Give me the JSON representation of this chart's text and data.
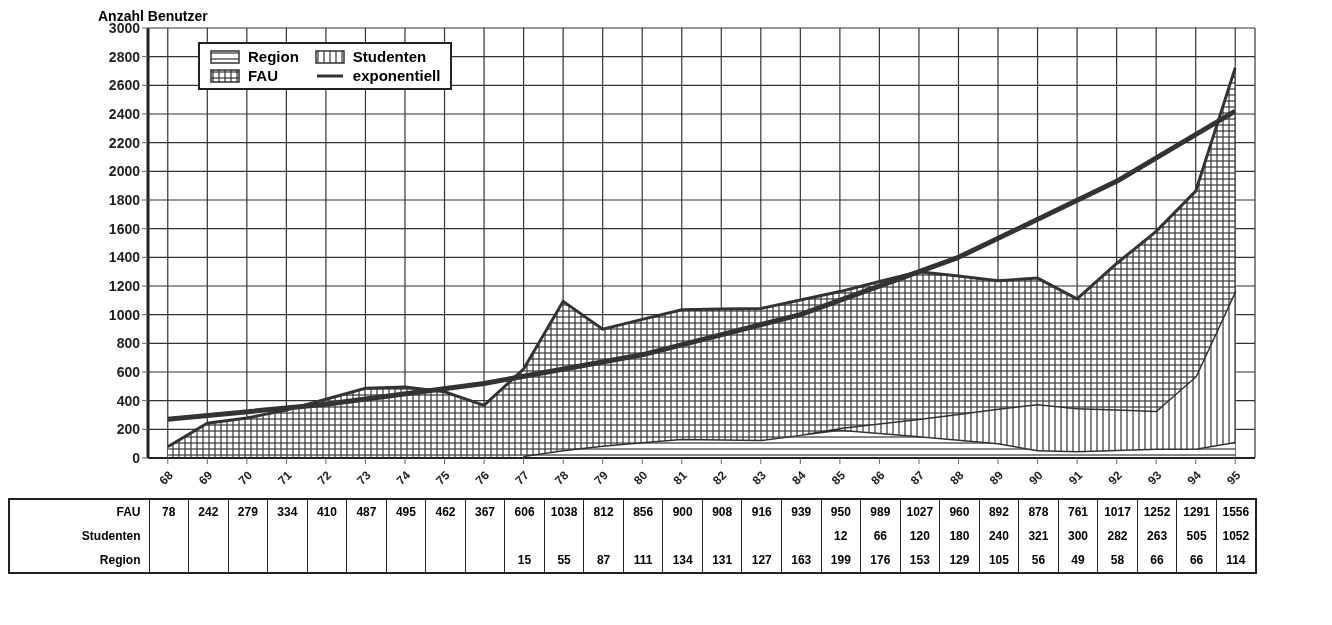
{
  "chart_data": {
    "type": "area",
    "ylabel": "Anzahl Benutzer",
    "categories": [
      "68",
      "69",
      "70",
      "71",
      "72",
      "73",
      "74",
      "75",
      "76",
      "77",
      "78",
      "79",
      "80",
      "81",
      "82",
      "83",
      "84",
      "85",
      "86",
      "87",
      "88",
      "89",
      "90",
      "91",
      "92",
      "93",
      "94",
      "95"
    ],
    "stacked": true,
    "grid": true,
    "legend": "top left",
    "ylim": [
      0,
      3000
    ],
    "yticks": [
      0,
      200,
      400,
      600,
      800,
      1000,
      1200,
      1400,
      1600,
      1800,
      2000,
      2200,
      2400,
      2600,
      2800,
      3000
    ],
    "series": [
      {
        "name": "Region",
        "color": "#333333",
        "values": [
          null,
          null,
          null,
          null,
          null,
          null,
          null,
          null,
          null,
          15,
          55,
          87,
          111,
          134,
          131,
          127,
          163,
          199,
          176,
          153,
          129,
          105,
          56,
          49,
          58,
          66,
          66,
          114
        ],
        "value_labels": [
          null,
          null,
          null,
          null,
          null,
          null,
          null,
          null,
          null,
          "15",
          "55",
          "87",
          "111",
          "134",
          "131",
          "127",
          "163",
          "199",
          "176",
          "153",
          "129",
          "105",
          "56",
          "49",
          "58",
          "66",
          "66",
          "114"
        ]
      },
      {
        "name": "Studenten",
        "color": "#333333",
        "values": [
          null,
          null,
          null,
          null,
          null,
          null,
          null,
          null,
          null,
          null,
          null,
          null,
          null,
          null,
          null,
          null,
          null,
          12,
          66,
          120,
          180,
          240,
          321,
          300,
          282,
          263,
          505,
          1052
        ],
        "value_labels": [
          null,
          null,
          null,
          null,
          null,
          null,
          null,
          null,
          null,
          null,
          null,
          null,
          null,
          null,
          null,
          null,
          null,
          "12",
          "66",
          "120",
          "180",
          "240",
          "321",
          "300",
          "282",
          "263",
          "505",
          "1052"
        ]
      },
      {
        "name": "FAU",
        "color": "#333333",
        "values": [
          78,
          242,
          279,
          334,
          410,
          487,
          495,
          462,
          367,
          606,
          1038,
          812,
          856,
          900,
          908,
          916,
          939,
          950,
          989,
          1027,
          960,
          892,
          878,
          761,
          1017,
          1252,
          1291,
          1556
        ],
        "value_labels": [
          "78",
          "242",
          "279",
          "334",
          "410",
          "487",
          "495",
          "462",
          "367",
          "606",
          "1038",
          "812",
          "856",
          "900",
          "908",
          "916",
          "939",
          "950",
          "989",
          "1027",
          "960",
          "892",
          "878",
          "761",
          "1017",
          "1252",
          "1291",
          "1556"
        ]
      },
      {
        "name": "exponentiell",
        "type": "line",
        "color": "#333333",
        "x": [
          "68",
          "72",
          "76",
          "80",
          "84",
          "88",
          "92",
          "95"
        ],
        "values": [
          270,
          375,
          520,
          720,
          1000,
          1400,
          1930,
          2420
        ]
      }
    ]
  }
}
